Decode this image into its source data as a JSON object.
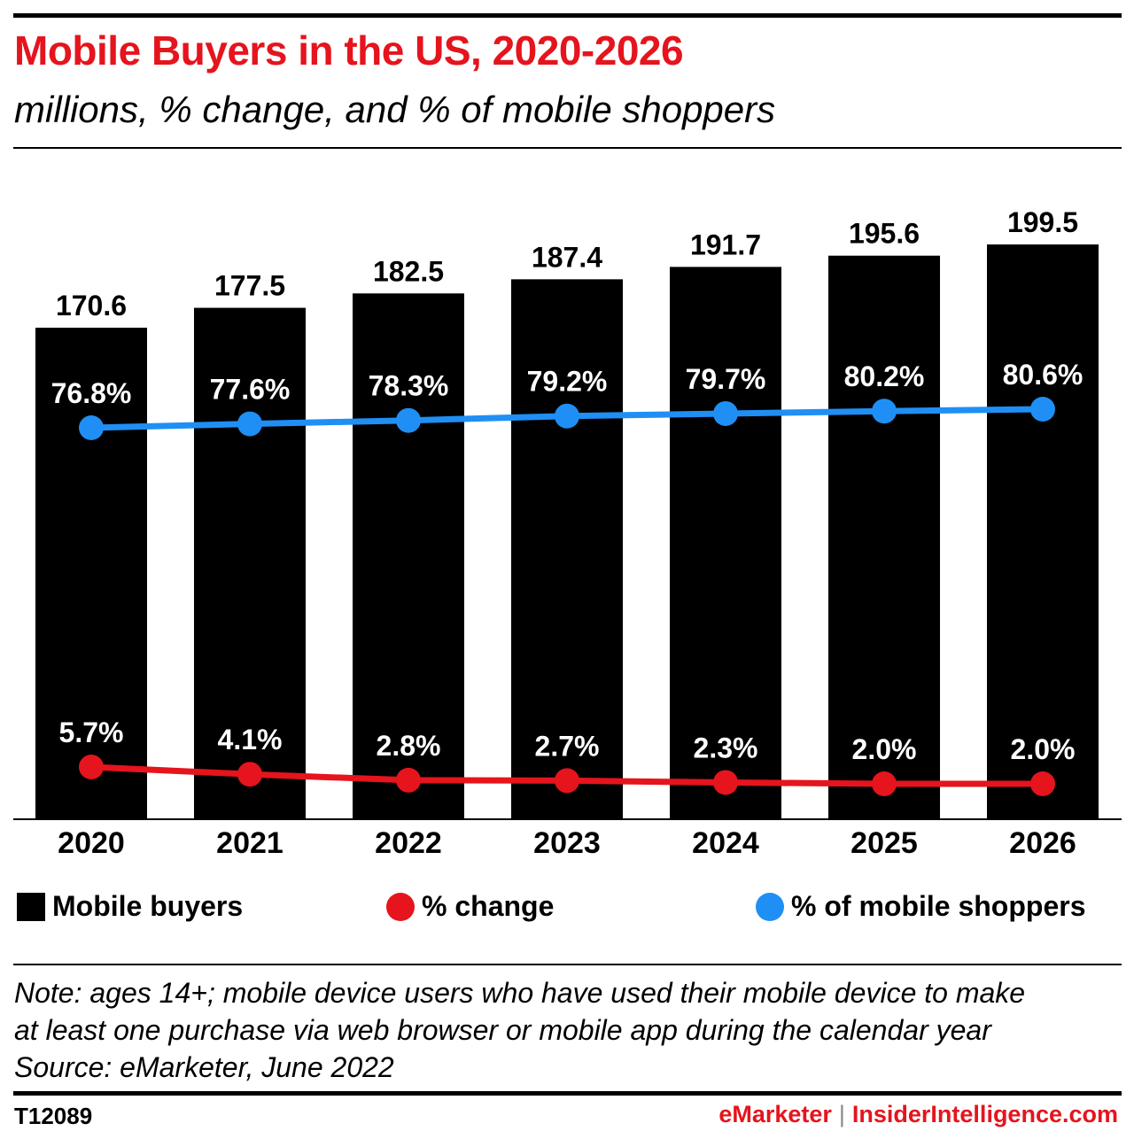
{
  "title": "Mobile Buyers in the US, 2020-2026",
  "subtitle": "millions, % change, and % of mobile shoppers",
  "colors": {
    "title": "#e5141d",
    "bars": "#000000",
    "change_line": "#e5141d",
    "share_line": "#1f8ff5"
  },
  "chart_data": {
    "type": "bar",
    "categories": [
      "2020",
      "2021",
      "2022",
      "2023",
      "2024",
      "2025",
      "2026"
    ],
    "series": [
      {
        "name": "Mobile buyers",
        "type": "bar",
        "values": [
          170.6,
          177.5,
          182.5,
          187.4,
          191.7,
          195.6,
          199.5
        ],
        "labels": [
          "170.6",
          "177.5",
          "182.5",
          "187.4",
          "191.7",
          "195.6",
          "199.5"
        ]
      },
      {
        "name": "% change",
        "type": "line",
        "values": [
          5.7,
          4.1,
          2.8,
          2.7,
          2.3,
          2.0,
          2.0
        ],
        "labels": [
          "5.7%",
          "4.1%",
          "2.8%",
          "2.7%",
          "2.3%",
          "2.0%",
          "2.0%"
        ]
      },
      {
        "name": "% of mobile shoppers",
        "type": "line",
        "values": [
          76.8,
          77.6,
          78.3,
          79.2,
          79.7,
          80.2,
          80.6
        ],
        "labels": [
          "76.8%",
          "77.6%",
          "78.3%",
          "79.2%",
          "79.7%",
          "80.2%",
          "80.6%"
        ]
      }
    ],
    "grid": false,
    "legend_position": "bottom"
  },
  "legend": {
    "buyers": "Mobile buyers",
    "change": "% change",
    "share": "% of mobile shoppers"
  },
  "note": {
    "line1": "Note: ages 14+; mobile device users who have used their mobile device to make",
    "line2": "at least one purchase via web browser or mobile app during the calendar year",
    "source": "Source: eMarketer, June 2022"
  },
  "footer": {
    "id": "T12089",
    "brand1": "eMarketer",
    "separator": "|",
    "brand2": "InsiderIntelligence.com"
  }
}
